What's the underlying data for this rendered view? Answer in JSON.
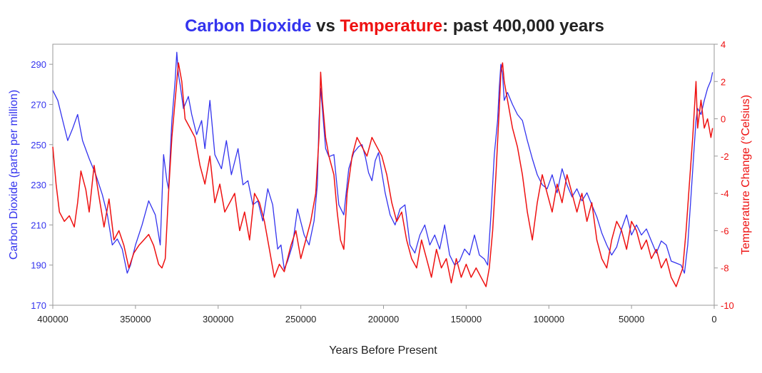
{
  "chart_data": {
    "type": "line",
    "title": {
      "part1": "Carbon Dioxide",
      "part2": " vs ",
      "part3": "Temperature",
      "part4": ": past 400,000 years"
    },
    "xlabel": "Years Before Present",
    "ylabel_left": "Carbon Dioxide (parts per million)",
    "ylabel_right": "Temperature Change (°Celsius)",
    "xlim": [
      400000,
      0
    ],
    "ylim_left": [
      170,
      300
    ],
    "ylim_right": [
      -10,
      4
    ],
    "x_ticks": [
      "400000",
      "350000",
      "300000",
      "250000",
      "200000",
      "150000",
      "100000",
      "50000",
      "0"
    ],
    "y_ticks_left": [
      "170",
      "190",
      "210",
      "230",
      "250",
      "270",
      "290"
    ],
    "y_ticks_right": [
      "-10",
      "-8",
      "-6",
      "-4",
      "-2",
      "0",
      "2",
      "4"
    ],
    "colors": {
      "co2": "#3333ee",
      "temperature": "#ee1111",
      "title_dark": "#222222"
    },
    "series": [
      {
        "name": "Carbon Dioxide",
        "axis": "left",
        "x": [
          400000,
          397000,
          394000,
          391000,
          388000,
          385000,
          382000,
          378000,
          374000,
          370000,
          367000,
          364000,
          361000,
          358000,
          355000,
          353000,
          350000,
          346000,
          342000,
          338000,
          335000,
          333000,
          331000,
          330000,
          328000,
          326000,
          325000,
          324000,
          323000,
          321000,
          318000,
          316000,
          313000,
          310000,
          308000,
          305000,
          302000,
          298000,
          295000,
          292000,
          288000,
          285000,
          282000,
          279000,
          276000,
          273000,
          270000,
          267000,
          264000,
          262000,
          260000,
          258000,
          255000,
          252000,
          248000,
          245000,
          242000,
          240000,
          239000,
          238000,
          237000,
          235000,
          233000,
          230000,
          227000,
          224000,
          221000,
          218000,
          215000,
          213000,
          211000,
          209000,
          207000,
          205000,
          203000,
          201000,
          199000,
          196000,
          193000,
          190000,
          187000,
          184000,
          181000,
          178000,
          175000,
          172000,
          169000,
          166000,
          163000,
          160000,
          157000,
          154000,
          151000,
          148000,
          145000,
          142000,
          139000,
          137000,
          135000,
          133000,
          131000,
          130000,
          129000,
          128000,
          127000,
          125000,
          122000,
          119000,
          116000,
          113000,
          110000,
          107000,
          104000,
          101000,
          98000,
          95000,
          92000,
          89000,
          86000,
          83000,
          80000,
          77000,
          74000,
          71000,
          68000,
          65000,
          62000,
          59000,
          56000,
          53000,
          50000,
          47000,
          44000,
          41000,
          38000,
          35000,
          32000,
          29000,
          26000,
          23000,
          20000,
          18000,
          16000,
          14000,
          12000,
          11000,
          10000,
          8000,
          6000,
          4000,
          2000,
          1000
        ],
        "y": [
          277,
          272,
          262,
          252,
          258,
          265,
          252,
          243,
          235,
          225,
          215,
          200,
          203,
          198,
          186,
          190,
          200,
          210,
          222,
          215,
          200,
          245,
          232,
          228,
          262,
          282,
          296,
          285,
          280,
          268,
          274,
          265,
          255,
          262,
          248,
          272,
          245,
          238,
          252,
          235,
          248,
          230,
          232,
          220,
          222,
          212,
          228,
          220,
          198,
          200,
          188,
          192,
          200,
          218,
          205,
          200,
          212,
          230,
          262,
          278,
          268,
          248,
          244,
          245,
          220,
          215,
          238,
          246,
          249,
          250,
          244,
          236,
          232,
          242,
          246,
          236,
          226,
          215,
          210,
          218,
          220,
          200,
          196,
          205,
          210,
          200,
          205,
          198,
          210,
          195,
          190,
          192,
          198,
          195,
          205,
          195,
          193,
          190,
          215,
          245,
          262,
          278,
          290,
          285,
          272,
          276,
          270,
          265,
          262,
          252,
          243,
          235,
          230,
          228,
          235,
          226,
          238,
          230,
          224,
          228,
          222,
          226,
          220,
          214,
          206,
          200,
          195,
          199,
          208,
          215,
          205,
          210,
          205,
          208,
          202,
          196,
          202,
          200,
          192,
          191,
          190,
          186,
          200,
          225,
          250,
          262,
          268,
          265,
          272,
          278,
          282,
          286
        ]
      },
      {
        "name": "Temperature",
        "axis": "right",
        "x": [
          400000,
          398000,
          396000,
          393000,
          390000,
          387000,
          385000,
          383000,
          380000,
          378000,
          375000,
          372000,
          369000,
          366000,
          363000,
          360000,
          357000,
          354000,
          351000,
          348000,
          345000,
          342000,
          339000,
          336000,
          334000,
          332000,
          330000,
          328000,
          326000,
          324000,
          322000,
          320000,
          317000,
          314000,
          311000,
          308000,
          305000,
          302000,
          299000,
          296000,
          293000,
          290000,
          287000,
          284000,
          281000,
          278000,
          275000,
          272000,
          269000,
          266000,
          263000,
          260000,
          258000,
          256000,
          253000,
          250000,
          247000,
          244000,
          241000,
          239000,
          238000,
          237000,
          235000,
          233000,
          230000,
          228000,
          226000,
          224000,
          222000,
          219000,
          216000,
          213000,
          210000,
          207000,
          204000,
          201000,
          198000,
          195000,
          192000,
          189000,
          186000,
          183000,
          180000,
          177000,
          174000,
          171000,
          168000,
          165000,
          162000,
          159000,
          156000,
          153000,
          150000,
          147000,
          144000,
          141000,
          138000,
          136000,
          134000,
          132000,
          130000,
          129000,
          128000,
          127000,
          125000,
          122000,
          119000,
          116000,
          113000,
          110000,
          107000,
          104000,
          101000,
          98000,
          95000,
          92000,
          89000,
          86000,
          83000,
          80000,
          77000,
          74000,
          71000,
          68000,
          65000,
          62000,
          59000,
          56000,
          53000,
          50000,
          47000,
          44000,
          41000,
          38000,
          35000,
          32000,
          29000,
          26000,
          23000,
          21000,
          19000,
          17000,
          15000,
          13000,
          12000,
          11000,
          10000,
          8000,
          6000,
          4000,
          2000,
          1000
        ],
        "y": [
          -1.5,
          -3.5,
          -5.0,
          -5.5,
          -5.2,
          -5.8,
          -4.5,
          -2.8,
          -3.8,
          -5.0,
          -2.5,
          -4.2,
          -5.8,
          -4.3,
          -6.5,
          -6.0,
          -6.8,
          -8.0,
          -7.2,
          -6.8,
          -6.5,
          -6.2,
          -6.8,
          -7.8,
          -8.0,
          -7.5,
          -4.0,
          -1.0,
          1.0,
          3.0,
          2.0,
          0.0,
          -0.5,
          -1.0,
          -2.5,
          -3.5,
          -2.0,
          -4.5,
          -3.5,
          -5.0,
          -4.5,
          -4.0,
          -6.0,
          -5.0,
          -6.5,
          -4.0,
          -4.5,
          -5.5,
          -7.0,
          -8.5,
          -7.8,
          -8.2,
          -7.5,
          -6.8,
          -6.0,
          -7.5,
          -6.5,
          -5.5,
          -4.0,
          -1.0,
          2.5,
          1.0,
          -1.0,
          -2.0,
          -3.0,
          -5.0,
          -6.5,
          -7.0,
          -4.0,
          -2.0,
          -1.0,
          -1.5,
          -2.0,
          -1.0,
          -1.5,
          -2.0,
          -3.0,
          -4.5,
          -5.5,
          -5.0,
          -6.5,
          -7.5,
          -8.0,
          -6.5,
          -7.5,
          -8.5,
          -7.0,
          -8.0,
          -7.5,
          -8.8,
          -7.5,
          -8.5,
          -7.8,
          -8.5,
          -8.0,
          -8.5,
          -9.0,
          -8.0,
          -6.0,
          -3.0,
          0.5,
          2.5,
          3.0,
          2.0,
          1.0,
          -0.5,
          -1.5,
          -3.0,
          -5.0,
          -6.5,
          -4.5,
          -3.0,
          -4.0,
          -5.0,
          -3.5,
          -4.5,
          -3.0,
          -4.0,
          -5.0,
          -4.0,
          -5.5,
          -4.5,
          -6.5,
          -7.5,
          -8.0,
          -6.5,
          -5.5,
          -6.0,
          -7.0,
          -5.5,
          -6.0,
          -7.0,
          -6.5,
          -7.5,
          -7.0,
          -8.0,
          -7.5,
          -8.5,
          -9.0,
          -8.5,
          -8.0,
          -6.0,
          -3.5,
          -1.0,
          0.5,
          2.0,
          -0.5,
          1.0,
          -0.5,
          0.0,
          -1.0,
          -0.5
        ]
      }
    ],
    "grid": false,
    "legend": "none"
  }
}
